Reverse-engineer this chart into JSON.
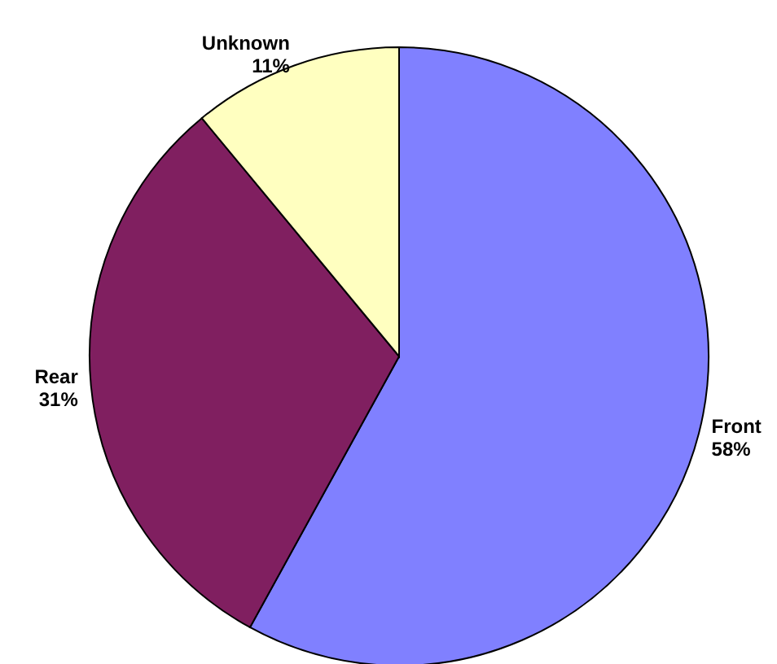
{
  "chart_data": {
    "type": "pie",
    "categories": [
      "Front",
      "Rear",
      "Unknown"
    ],
    "values": [
      58,
      31,
      11
    ],
    "value_labels": [
      "58%",
      "31%",
      "11%"
    ],
    "colors": [
      "#8080ff",
      "#801f60",
      "#ffffc0"
    ],
    "legend": false
  }
}
